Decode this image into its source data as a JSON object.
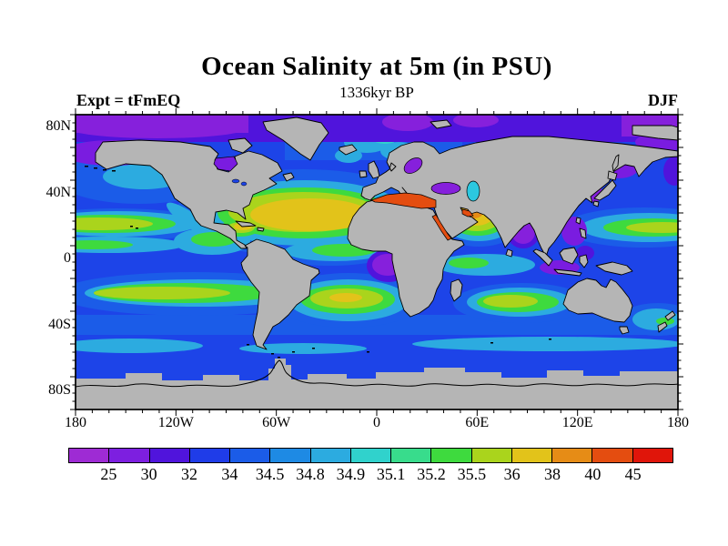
{
  "title": "Ocean Salinity at 5m (in PSU)",
  "subtitle": "1336kyr BP",
  "header": {
    "experiment": "Expt = tFmEQ",
    "season": "DJF"
  },
  "map_axes": {
    "lat_tick_labels": [
      "80N",
      "40N",
      "0",
      "40S",
      "80S"
    ],
    "lon_tick_labels": [
      "180",
      "120W",
      "60W",
      "0",
      "60E",
      "120E",
      "180"
    ]
  },
  "colorbar": {
    "boundary_labels": [
      "25",
      "30",
      "32",
      "34",
      "34.5",
      "34.8",
      "34.9",
      "35.1",
      "35.2",
      "35.5",
      "36",
      "38",
      "40",
      "45"
    ],
    "segment_colors": [
      "#9e2bd4",
      "#7d1fe0",
      "#5014dc",
      "#1f3ce8",
      "#1b5ce8",
      "#1e8ae4",
      "#2cabe0",
      "#30d2cc",
      "#38dc8c",
      "#3eda3e",
      "#aad41c",
      "#e2c31a",
      "#e68c16",
      "#e44d10",
      "#e0150a"
    ]
  },
  "chart_data": {
    "type": "heatmap",
    "subtype": "filled-contour world map (equirectangular)",
    "title": "Ocean Salinity at 5m (in PSU)",
    "subtitle": "1336kyr BP",
    "experiment": "Expt = tFmEQ",
    "season": "DJF",
    "units": "PSU",
    "x_axis": {
      "tick_labels": [
        "180",
        "120W",
        "60W",
        "0",
        "60E",
        "120E",
        "180"
      ],
      "range_lon": [
        -180,
        180
      ],
      "minor_tick_deg": 10
    },
    "y_axis": {
      "tick_labels": [
        "80N",
        "40N",
        "0",
        "40S",
        "80S"
      ],
      "range_lat": [
        -90,
        90
      ],
      "minor_tick_deg": 5
    },
    "contour_levels": [
      25,
      30,
      32,
      34,
      34.5,
      34.8,
      34.9,
      35.1,
      35.2,
      35.5,
      36,
      38,
      40,
      45
    ],
    "level_colors": [
      "#9e2bd4",
      "#7d1fe0",
      "#5014dc",
      "#1f3ce8",
      "#1b5ce8",
      "#1e8ae4",
      "#2cabe0",
      "#30d2cc",
      "#38dc8c",
      "#3eda3e",
      "#aad41c",
      "#e2c31a",
      "#e68c16",
      "#e44d10",
      "#e0150a"
    ],
    "land_color": "#b5b5b5",
    "grid": false,
    "legend_position": "horizontal colorbar below map",
    "notable_features": [
      {
        "region": "Mediterranean Sea, Red Sea, Persian Gulf",
        "value_psu": "40-45+"
      },
      {
        "region": "North Atlantic subtropical gyre",
        "value_psu": "36-38"
      },
      {
        "region": "Arabian Sea",
        "value_psu": "36-40"
      },
      {
        "region": "Caribbean / Gulf of Mexico",
        "value_psu": "35.5-38"
      },
      {
        "region": "South Atlantic, South Pacific, South Indian subtropical gyres",
        "value_psu": "35.5-36"
      },
      {
        "region": "North Pacific subtropical gyre (both map edges)",
        "value_psu": "35.5-36"
      },
      {
        "region": "Arctic Ocean band",
        "value_psu": "25-32"
      },
      {
        "region": "Baltic Sea, Black Sea, Hudson Bay, Bay of Bengal, Indonesian seas, Gulf of Guinea",
        "value_psu": "25-32"
      },
      {
        "region": "Open mid-latitude and tropical oceans",
        "value_psu": "32-35.2"
      },
      {
        "region": "Caspian Sea",
        "value_psu": "34.8-35.1"
      },
      {
        "region": "Continents and Antarctica",
        "value_psu": "land (gray)"
      }
    ]
  }
}
